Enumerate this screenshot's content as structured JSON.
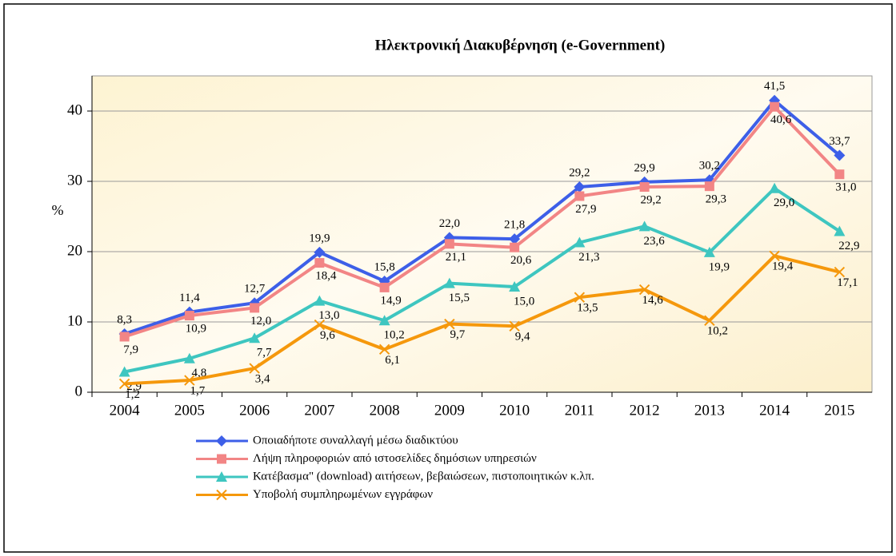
{
  "chart_data": {
    "type": "line",
    "title": "Ηλεκτρονική Διακυβέρνηση (e-Government)",
    "ylabel": "%",
    "categories": [
      "2004",
      "2005",
      "2006",
      "2007",
      "2008",
      "2009",
      "2010",
      "2011",
      "2012",
      "2013",
      "2014",
      "2015"
    ],
    "ylim": [
      0,
      45
    ],
    "yticks": [
      0,
      10,
      20,
      30,
      40
    ],
    "grid": true,
    "legend": "bottom",
    "series": [
      {
        "name": "Οποιαδήποτε συναλλαγή μέσω διαδικτύου",
        "color": "#3d5fe8",
        "marker": "diamond",
        "values": [
          8.3,
          11.4,
          12.7,
          19.9,
          15.8,
          22.0,
          21.8,
          29.2,
          29.9,
          30.2,
          41.5,
          33.7
        ],
        "value_labels": [
          "8,3",
          "11,4",
          "12,7",
          "19,9",
          "15,8",
          "22,0",
          "21,8",
          "29,2",
          "29,9",
          "30,2",
          "41,5",
          "33,7"
        ]
      },
      {
        "name": "Λήψη πληροφοριών από ιστοσελίδες δημόσιων υπηρεσιών",
        "color": "#f28585",
        "marker": "square",
        "values": [
          7.9,
          10.9,
          12.0,
          18.4,
          14.9,
          21.1,
          20.6,
          27.9,
          29.2,
          29.3,
          40.6,
          31.0
        ],
        "value_labels": [
          "7,9",
          "10,9",
          "12,0",
          "18,4",
          "14,9",
          "21,1",
          "20,6",
          "27,9",
          "29,2",
          "29,3",
          "40,6",
          "31,0"
        ]
      },
      {
        "name": "Κατέβασμα\" (download) αιτήσεων, βεβαιώσεων, πιστοποιητικών κ.λπ.",
        "color": "#3ec6c0",
        "marker": "triangle",
        "values": [
          2.9,
          4.8,
          7.7,
          13.0,
          10.2,
          15.5,
          15.0,
          21.3,
          23.6,
          19.9,
          29.0,
          22.9
        ],
        "value_labels": [
          "2,9",
          "4,8",
          "7,7",
          "13,0",
          "10,2",
          "15,5",
          "15,0",
          "21,3",
          "23,6",
          "19,9",
          "29,0",
          "22,9"
        ]
      },
      {
        "name": "Υποβολή συμπληρωμένων εγγράφων",
        "color": "#f5980c",
        "marker": "x",
        "values": [
          1.2,
          1.7,
          3.4,
          9.6,
          6.1,
          9.7,
          9.4,
          13.5,
          14.6,
          10.2,
          19.4,
          17.1
        ],
        "value_labels": [
          "1,2",
          "1,7",
          "3,4",
          "9,6",
          "6,1",
          "9,7",
          "9,4",
          "13,5",
          "14,6",
          "10,2",
          "19,4",
          "17,1"
        ]
      }
    ]
  }
}
